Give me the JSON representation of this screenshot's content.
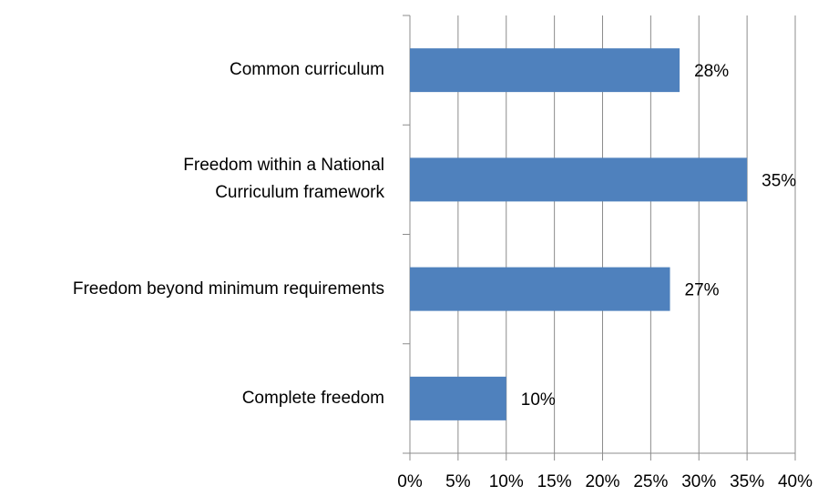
{
  "chart_data": {
    "type": "bar",
    "orientation": "horizontal",
    "categories": [
      "Common curriculum",
      "Freedom within a National Curriculum framework",
      "Freedom beyond minimum requirements",
      "Complete freedom"
    ],
    "values": [
      28,
      35,
      27,
      10
    ],
    "value_labels": [
      "28%",
      "35%",
      "27%",
      "10%"
    ],
    "color": "#4f81bd",
    "xlim": [
      0,
      40
    ],
    "xticks": [
      {
        "value": 0,
        "label": "0%"
      },
      {
        "value": 5,
        "label": "5%"
      },
      {
        "value": 10,
        "label": "10%"
      },
      {
        "value": 15,
        "label": "15%"
      },
      {
        "value": 20,
        "label": "20%"
      },
      {
        "value": 25,
        "label": "25%"
      },
      {
        "value": 30,
        "label": "30%"
      },
      {
        "value": 35,
        "label": "35%"
      },
      {
        "value": 40,
        "label": "40%"
      }
    ],
    "grid": true
  }
}
